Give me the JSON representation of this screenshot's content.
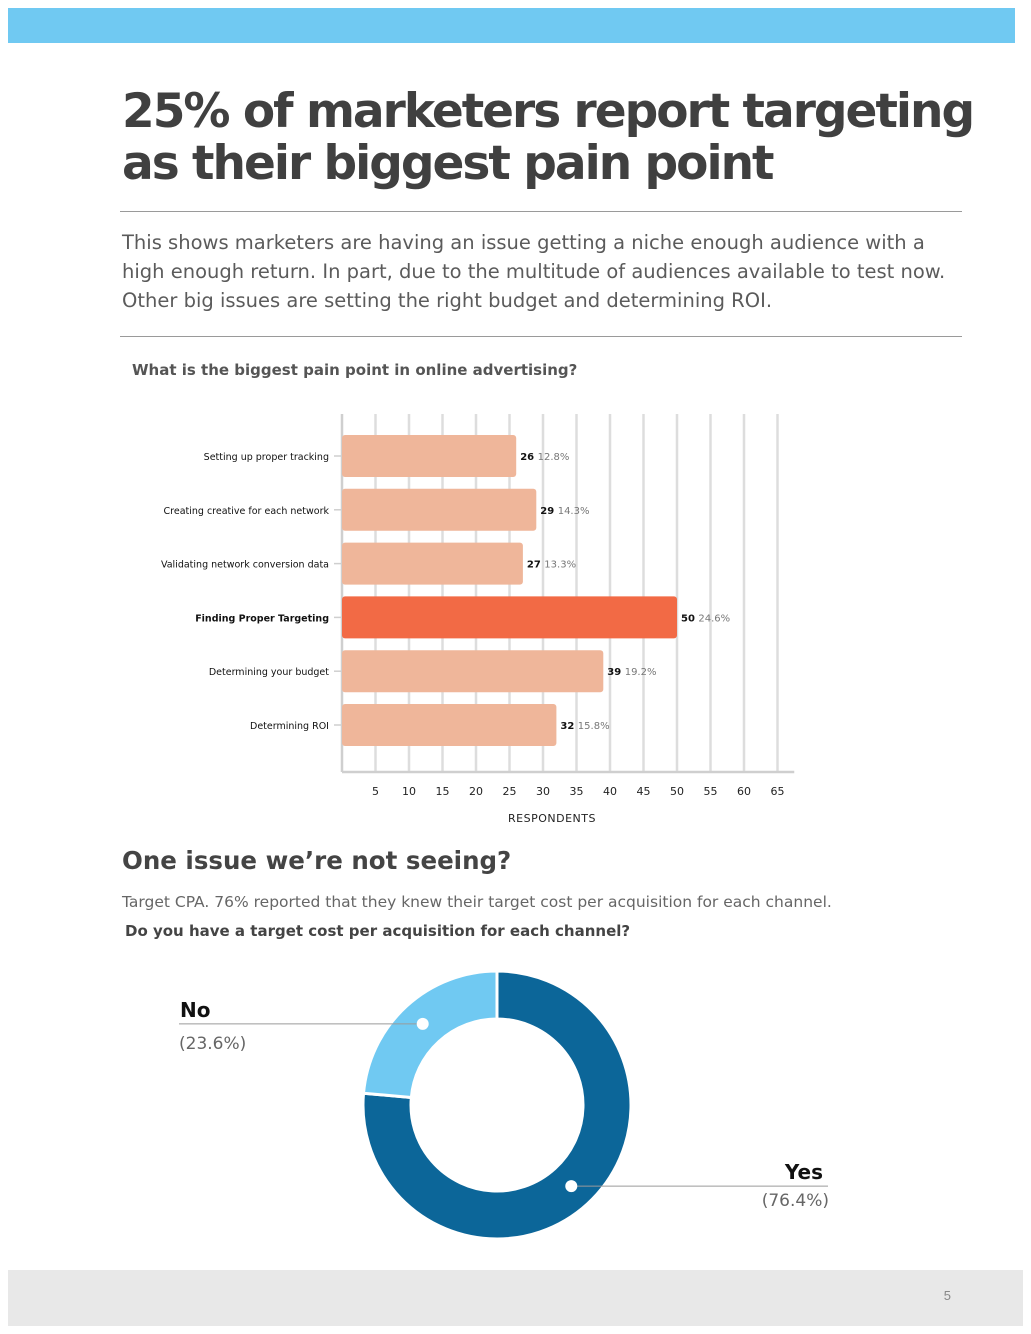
{
  "page": {
    "title": "25% of marketers report targeting as their biggest pain point",
    "intro": "This shows marketers are having an issue getting a niche enough audience with a high enough return. In part, due to the multitude of audiences available to test now. Other big issues are setting the right budget and determining ROI.",
    "section2_heading": "One issue we’re not seeing?",
    "section2_text": "Target CPA. 76% reported that they knew their target cost per acquisition for each channel.",
    "page_number": "5"
  },
  "colors": {
    "top_bar": "#70c9f2",
    "bar_default": "#efb69a",
    "bar_highlight": "#f26a45",
    "donut_yes": "#0c6699",
    "donut_no": "#70c9f2",
    "grid": "#dddddd"
  },
  "chart_data": [
    {
      "type": "bar",
      "orientation": "horizontal",
      "title": "What is the biggest pain point in online advertising?",
      "xlabel": "RESPONDENTS",
      "ylabel": "",
      "xlim": [
        0,
        66
      ],
      "ticks": [
        "5",
        "10",
        "15",
        "20",
        "25",
        "30",
        "35",
        "40",
        "45",
        "50",
        "55",
        "60",
        "65"
      ],
      "categories": [
        "Setting up proper tracking",
        "Creating creative for each network",
        "Validating network conversion data",
        "Finding Proper Targeting",
        "Determining your budget",
        "Determining ROI"
      ],
      "values": [
        26,
        29,
        27,
        50,
        39,
        32
      ],
      "percents": [
        "12.8%",
        "14.3%",
        "13.3%",
        "24.6%",
        "19.2%",
        "15.8%"
      ],
      "highlight_index": 3,
      "grid": true
    },
    {
      "type": "pie",
      "variant": "donut",
      "title": "Do you have a target cost per acquisition for each channel?",
      "slices": [
        {
          "label": "Yes",
          "value": 76.4,
          "pct_label": "(76.4%)"
        },
        {
          "label": "No",
          "value": 23.6,
          "pct_label": "(23.6%)"
        }
      ]
    }
  ]
}
